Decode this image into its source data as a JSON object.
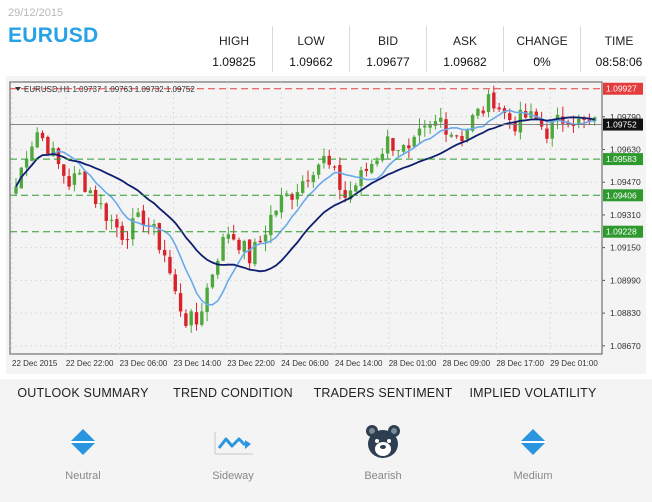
{
  "header": {
    "date": "29/12/2015",
    "symbol": "EURUSD",
    "quotes": [
      {
        "label": "HIGH",
        "value": "1.09825"
      },
      {
        "label": "LOW",
        "value": "1.09662"
      },
      {
        "label": "BID",
        "value": "1.09677"
      },
      {
        "label": "ASK",
        "value": "1.09682"
      },
      {
        "label": "CHANGE",
        "value": "0%"
      },
      {
        "label": "TIME",
        "value": "08:58:06"
      }
    ]
  },
  "chart_data": {
    "type": "candlestick",
    "info": "EURUSD,H1  1.09737 1.09763 1.09732 1.09752",
    "y_ticks": [
      "1.09790",
      "1.09630",
      "1.09470",
      "1.09310",
      "1.09150",
      "1.08990",
      "1.08830",
      "1.08670"
    ],
    "y_tick_values": [
      1.0979,
      1.0963,
      1.0947,
      1.0931,
      1.0915,
      1.0899,
      1.0883,
      1.0867
    ],
    "ylim": [
      1.0863,
      1.0996
    ],
    "x_ticks": [
      "22 Dec 2015",
      "22 Dec 22:00",
      "23 Dec 06:00",
      "23 Dec 14:00",
      "23 Dec 22:00",
      "24 Dec 06:00",
      "24 Dec 14:00",
      "28 Dec 01:00",
      "28 Dec 09:00",
      "28 Dec 17:00",
      "29 Dec 01:00"
    ],
    "levels": [
      {
        "value": 1.09927,
        "label": "1.09927",
        "color": "#e43c3c"
      },
      {
        "value": 1.09583,
        "label": "1.09583",
        "color": "#2e9a2e"
      },
      {
        "value": 1.09406,
        "label": "1.09406",
        "color": "#2e9a2e"
      },
      {
        "value": 1.09228,
        "label": "1.09228",
        "color": "#2e9a2e"
      }
    ],
    "current_price": {
      "value": 1.09752,
      "label": "1.09752"
    },
    "colors": {
      "up": "#4fa83d",
      "down": "#d8232a",
      "ma_fast": "#6aaaea",
      "ma_slow": "#0f1e6e",
      "level_red": "#e43c3c",
      "level_green": "#2e9a2e"
    },
    "close_path": [
      1.0945,
      1.0962,
      1.0972,
      1.0965,
      1.0955,
      1.0947,
      1.095,
      1.0943,
      1.0935,
      1.0928,
      1.0922,
      1.0925,
      1.093,
      1.0922,
      1.0912,
      1.0892,
      1.088,
      1.0878,
      1.0895,
      1.0912,
      1.0923,
      1.0918,
      1.091,
      1.0918,
      1.093,
      1.0938,
      1.0942,
      1.0948,
      1.0955,
      1.0958,
      1.095,
      1.094,
      1.0946,
      1.0953,
      1.096,
      1.0967,
      1.0965,
      1.096,
      1.0969,
      1.0973,
      1.0978,
      1.0972,
      1.097,
      1.0978,
      1.0983,
      1.0988,
      1.098,
      1.0976,
      1.0979,
      1.0977,
      1.0972,
      1.0976,
      1.098,
      1.0976,
      1.0975
    ]
  },
  "indicators": [
    {
      "title": "OUTLOOK SUMMARY",
      "icon": "diamond-icon",
      "label": "Neutral",
      "color": "#2b95e0"
    },
    {
      "title": "TREND CONDITION",
      "icon": "sideway-trend-icon",
      "label": "Sideway",
      "color": "#2b95e0"
    },
    {
      "title": "TRADERS SENTIMENT",
      "icon": "bear-icon",
      "label": "Bearish",
      "color": "#2c3e50"
    },
    {
      "title": "IMPLIED VOLATILITY",
      "icon": "diamond-icon",
      "label": "Medium",
      "color": "#2b95e0"
    }
  ]
}
